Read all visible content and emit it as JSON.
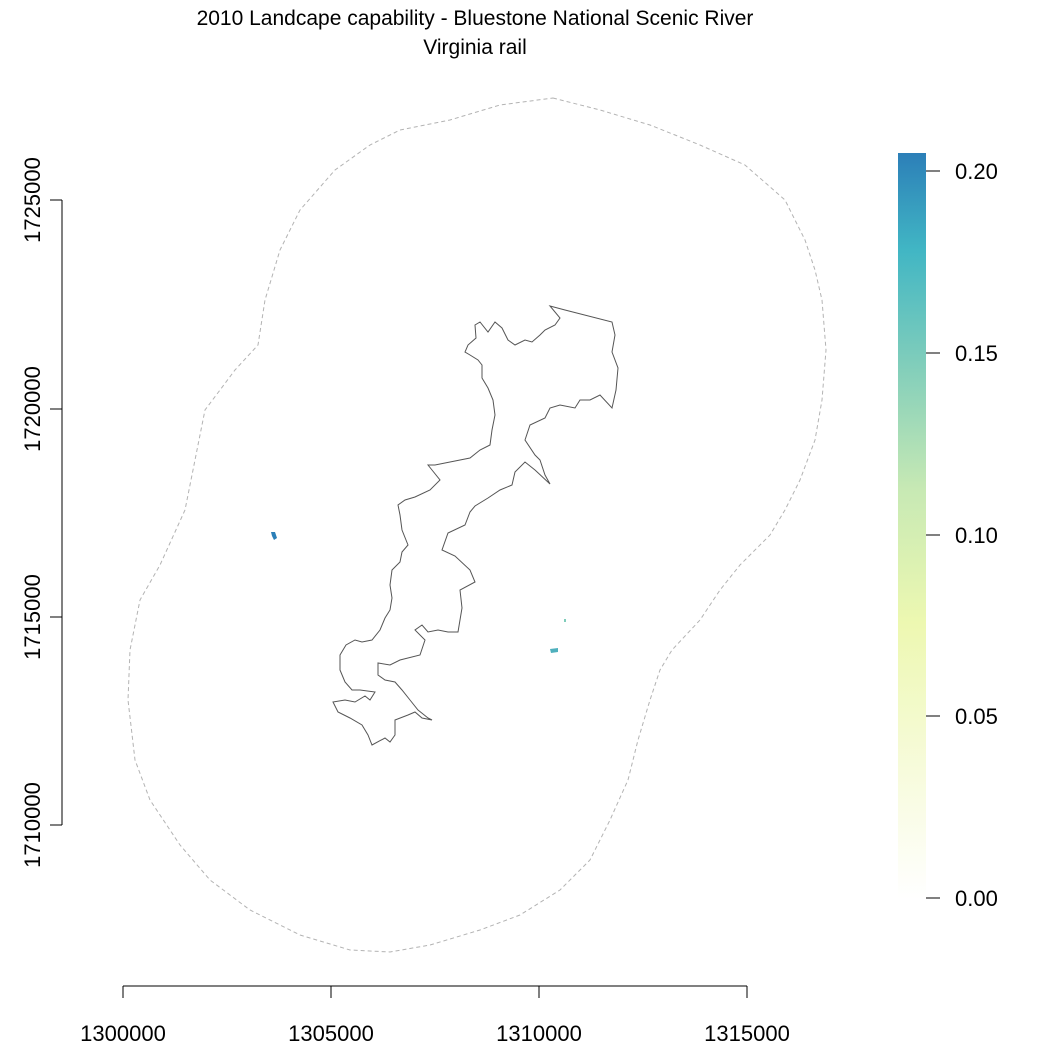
{
  "title": "2010 Landcape capability - Bluestone National Scenic River",
  "subtitle": "Virginia rail",
  "chart_data": {
    "type": "heatmap",
    "x_ticks": [
      "1300000",
      "1305000",
      "1310000",
      "1315000"
    ],
    "y_ticks": [
      "1710000",
      "1715000",
      "1720000",
      "1725000"
    ],
    "x_tick_values": [
      1300000,
      1305000,
      1310000,
      1315000
    ],
    "y_tick_values": [
      1710000,
      1715000,
      1720000,
      1725000
    ],
    "legend": {
      "position": "right",
      "ticks": [
        "0.00",
        "0.05",
        "0.10",
        "0.15",
        "0.20"
      ],
      "tick_values": [
        0.0,
        0.05,
        0.1,
        0.15,
        0.2
      ],
      "range": [
        0.0,
        0.205
      ],
      "colors": [
        "#ffffff",
        "#f7fbdc",
        "#edf8b1",
        "#c7e9b4",
        "#7fcdbb",
        "#41b6c4",
        "#2c7fb8"
      ]
    },
    "features": {
      "park_boundary": {
        "style": "solid",
        "color": "#555555"
      },
      "buffer_boundary": {
        "style": "dashed",
        "color": "#b3b3b3"
      }
    },
    "patches": [
      {
        "x": 1303550,
        "y": 1716950,
        "value": 0.2
      },
      {
        "x": 1310350,
        "y": 1714150,
        "value": 0.16
      },
      {
        "x": 1310600,
        "y": 1714900,
        "value": 0.17
      }
    ]
  }
}
